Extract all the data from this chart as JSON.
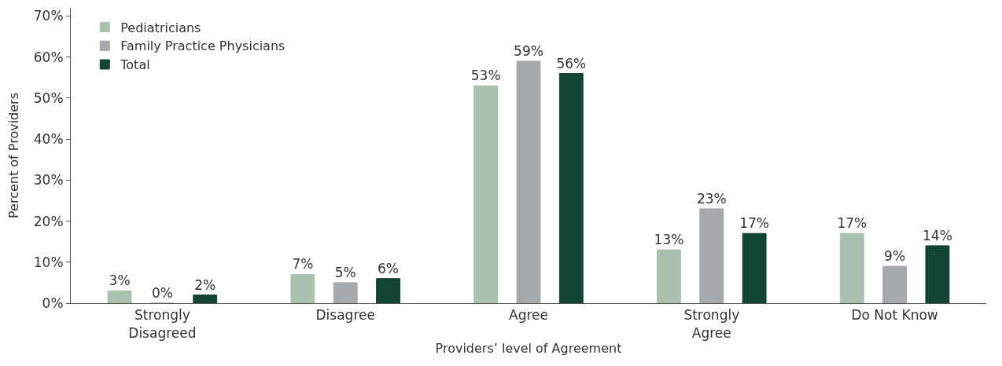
{
  "chart_data": {
    "type": "bar",
    "xlabel": "Providers’ level of Agreement",
    "ylabel": "Percent of Providers",
    "categories": [
      "Strongly\nDisagreed",
      "Disagree",
      "Agree",
      "Strongly\nAgree",
      "Do Not Know"
    ],
    "series": [
      {
        "name": "Pediatricians",
        "color": "#a9c2ad",
        "values": [
          3,
          7,
          53,
          13,
          17
        ],
        "value_labels": [
          "3%",
          "7%",
          "53%",
          "13%",
          "17%"
        ]
      },
      {
        "name": "Family Practice Physicians",
        "color": "#a7a8ac",
        "values": [
          0,
          5,
          59,
          23,
          9
        ],
        "value_labels": [
          "0%",
          "5%",
          "59%",
          "23%",
          "9%"
        ]
      },
      {
        "name": "Total",
        "color": "#124434",
        "values": [
          2,
          6,
          56,
          17,
          14
        ],
        "value_labels": [
          "2%",
          "6%",
          "56%",
          "17%",
          "14%"
        ]
      }
    ],
    "ylim": [
      0,
      72
    ],
    "yticks": [
      {
        "value": 0,
        "label": "0%"
      },
      {
        "value": 10,
        "label": "10%"
      },
      {
        "value": 20,
        "label": "20%"
      },
      {
        "value": 30,
        "label": "30%"
      },
      {
        "value": 40,
        "label": "40%"
      },
      {
        "value": 50,
        "label": "50%"
      },
      {
        "value": 60,
        "label": "60%"
      },
      {
        "value": 70,
        "label": "70%"
      }
    ],
    "legend": "top left"
  }
}
